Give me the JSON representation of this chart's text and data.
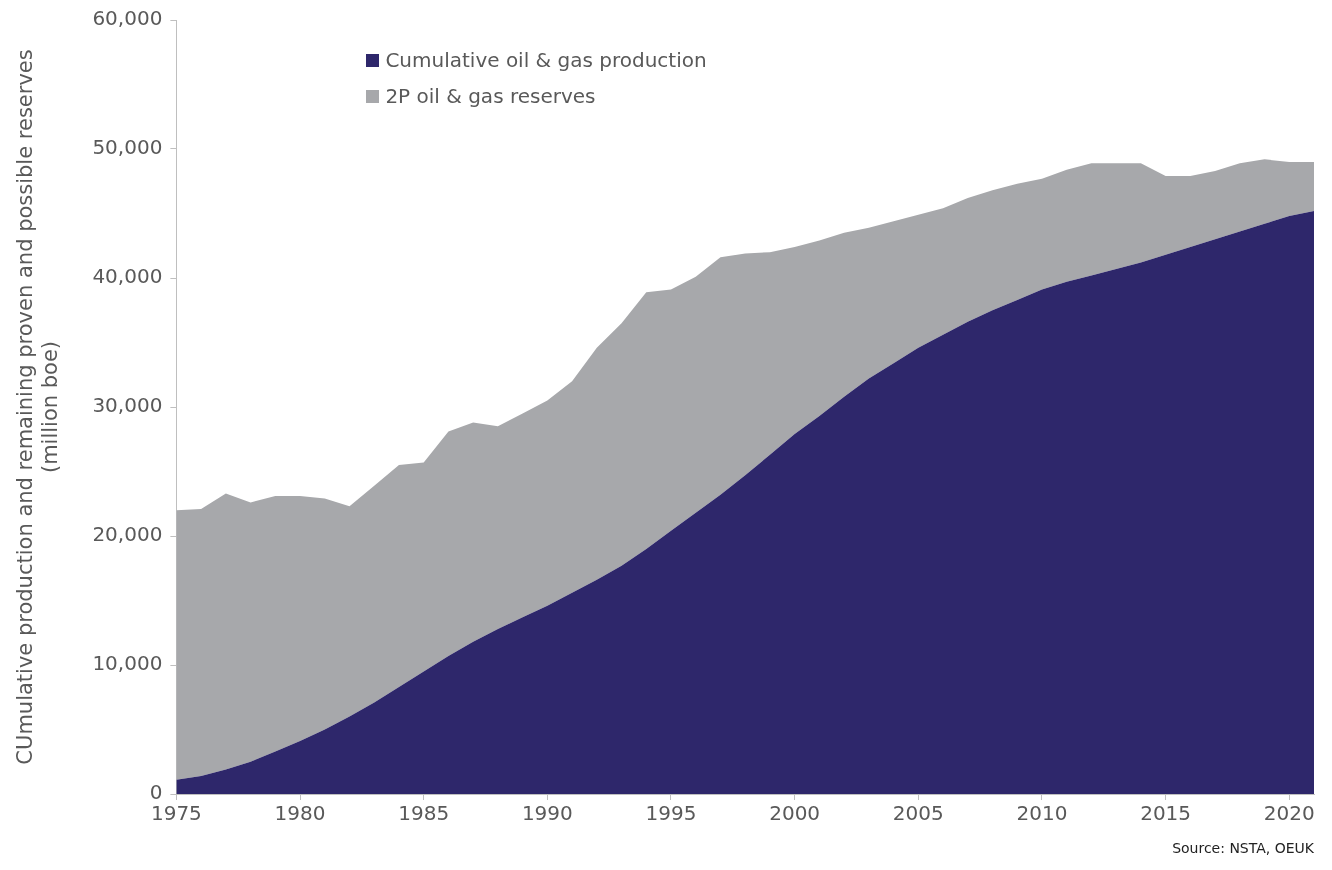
{
  "chart_data": {
    "type": "area",
    "stacked": true,
    "ylabel": "CUmulative production and remaining proven and possible reserves (million boe)",
    "x": [
      1975,
      1976,
      1977,
      1978,
      1979,
      1980,
      1981,
      1982,
      1983,
      1984,
      1985,
      1986,
      1987,
      1988,
      1989,
      1990,
      1991,
      1992,
      1993,
      1994,
      1995,
      1996,
      1997,
      1998,
      1999,
      2000,
      2001,
      2002,
      2003,
      2004,
      2005,
      2006,
      2007,
      2008,
      2009,
      2010,
      2011,
      2012,
      2013,
      2014,
      2015,
      2016,
      2017,
      2018,
      2019,
      2020,
      2021
    ],
    "series": [
      {
        "name": "Cumulative oil & gas production",
        "color": "#2e276b",
        "values": [
          1100,
          1400,
          1900,
          2500,
          3300,
          4100,
          5000,
          6000,
          7100,
          8300,
          9500,
          10700,
          11800,
          12800,
          13700,
          14600,
          15600,
          16600,
          17700,
          19000,
          20400,
          21800,
          23200,
          24700,
          26300,
          27900,
          29300,
          30800,
          32200,
          33400,
          34600,
          35600,
          36600,
          37500,
          38300,
          39100,
          39700,
          40200,
          40700,
          41200,
          41800,
          42400,
          43000,
          43600,
          44200,
          44800,
          45200
        ]
      },
      {
        "name": "2P oil & gas reserves",
        "color": "#a7a8ab",
        "values": [
          20900,
          20700,
          21400,
          20100,
          19800,
          19000,
          17900,
          16300,
          16800,
          17200,
          16200,
          17400,
          17000,
          15700,
          15800,
          15900,
          16400,
          18000,
          18800,
          19900,
          18700,
          18300,
          18400,
          17200,
          15700,
          14500,
          13600,
          12700,
          11700,
          11000,
          10300,
          9800,
          9600,
          9300,
          9000,
          8600,
          8700,
          8700,
          8200,
          7700,
          6100,
          5500,
          5300,
          5300,
          5000,
          4200,
          3800
        ]
      }
    ],
    "xlim": [
      1975,
      2021
    ],
    "xticks": [
      1975,
      1980,
      1985,
      1990,
      1995,
      2000,
      2005,
      2010,
      2015,
      2020
    ],
    "ylim": [
      0,
      60000
    ],
    "yticks": [
      0,
      {
        "value": 10000,
        "label": "10,000"
      },
      {
        "value": 20000,
        "label": "20,000"
      },
      {
        "value": 30000,
        "label": "30,000"
      },
      {
        "value": 40000,
        "label": "40,000"
      },
      {
        "value": 50000,
        "label": "50,000"
      },
      {
        "value": 60000,
        "label": "60,000"
      }
    ],
    "grid": false,
    "legend": "top left",
    "marker": "none",
    "annotations": [
      "Source: NSTA, OEUK"
    ]
  }
}
